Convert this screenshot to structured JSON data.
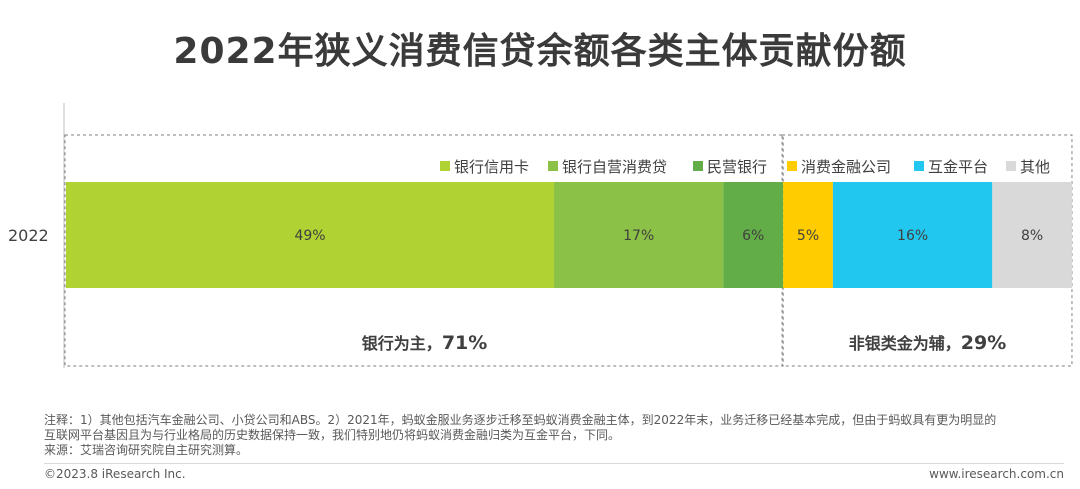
{
  "title": "2022年狭义消费信贷余额各类主体贡献份额",
  "chart_data": {
    "type": "bar",
    "orientation": "horizontal-stacked-100",
    "categories": [
      "2022"
    ],
    "series": [
      {
        "name": "银行信用卡",
        "values": [
          49
        ],
        "label": "49%",
        "color": "#b0d233"
      },
      {
        "name": "银行自营消费贷",
        "values": [
          17
        ],
        "label": "17%",
        "color": "#8bc146"
      },
      {
        "name": "民营银行",
        "values": [
          6
        ],
        "label": "6%",
        "color": "#62ad47"
      },
      {
        "name": "消费金融公司",
        "values": [
          5
        ],
        "label": "5%",
        "color": "#ffcc00"
      },
      {
        "name": "互金平台",
        "values": [
          16
        ],
        "label": "16%",
        "color": "#21c7ee"
      },
      {
        "name": "其他",
        "values": [
          8
        ],
        "label": "8%",
        "color": "#d9d9d9"
      }
    ],
    "groups": [
      {
        "label": "银行为主，",
        "value": "71%",
        "members": [
          "银行信用卡",
          "银行自营消费贷",
          "民营银行"
        ]
      },
      {
        "label": "非银类金为辅，",
        "value": "29%",
        "members": [
          "消费金融公司",
          "互金平台",
          "其他"
        ]
      }
    ],
    "xlim": [
      0,
      100
    ],
    "legend_position": "top-right"
  },
  "notes": [
    "注释：1）其他包括汽车金融公司、小贷公司和ABS。2）2021年，蚂蚁金服业务逐步迁移至蚂蚁消费金融主体，到2022年末，业务迁移已经基本完成，但由于蚂蚁具有更为明显的",
    "互联网平台基因且为与行业格局的历史数据保持一致，我们特别地仍将蚂蚁消费金融归类为互金平台，下同。",
    "来源：艾瑞咨询研究院自主研究测算。"
  ],
  "footer": {
    "left": "©2023.8 iResearch Inc.",
    "right": "www.iresearch.com.cn"
  }
}
